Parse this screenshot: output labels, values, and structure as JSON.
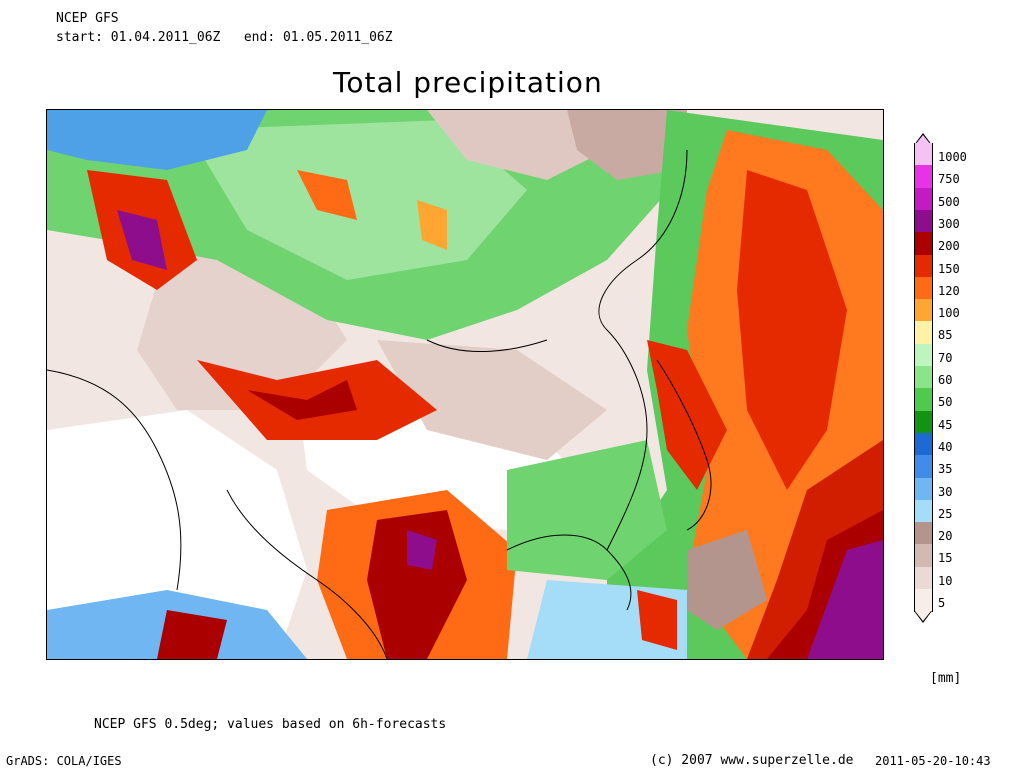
{
  "header": {
    "model": "NCEP GFS",
    "period": "start: 01.04.2011_06Z   end: 01.05.2011_06Z"
  },
  "title": "Total precipitation",
  "legend": {
    "unit": "[mm]",
    "levels": [
      {
        "label": "1000",
        "color": "#f3c3f3"
      },
      {
        "label": "750",
        "color": "#e633e6"
      },
      {
        "label": "500",
        "color": "#c31ac3"
      },
      {
        "label": "300",
        "color": "#8d0d8d"
      },
      {
        "label": "200",
        "color": "#aa0000"
      },
      {
        "label": "150",
        "color": "#e62a00"
      },
      {
        "label": "120",
        "color": "#ff6a14"
      },
      {
        "label": "100",
        "color": "#ffa632"
      },
      {
        "label": "85",
        "color": "#fff2a6"
      },
      {
        "label": "70",
        "color": "#bef5be"
      },
      {
        "label": "60",
        "color": "#8ae58a"
      },
      {
        "label": "50",
        "color": "#4ecb4e"
      },
      {
        "label": "45",
        "color": "#129412"
      },
      {
        "label": "40",
        "color": "#1d6ad5"
      },
      {
        "label": "35",
        "color": "#3f8de8"
      },
      {
        "label": "30",
        "color": "#70b6f2"
      },
      {
        "label": "25",
        "color": "#a5dcf8"
      },
      {
        "label": "20",
        "color": "#b4958d"
      },
      {
        "label": "15",
        "color": "#d2b9b2"
      },
      {
        "label": "10",
        "color": "#ead9d4"
      },
      {
        "label": "5",
        "color": "#f7eeea"
      }
    ]
  },
  "footer": {
    "note": "NCEP GFS 0.5deg; values based on 6h-forecasts",
    "grads": "GrADS: COLA/IGES",
    "copyright": "(c) 2007 www.superzelle.de",
    "timestamp": "2011-05-20-10:43"
  }
}
